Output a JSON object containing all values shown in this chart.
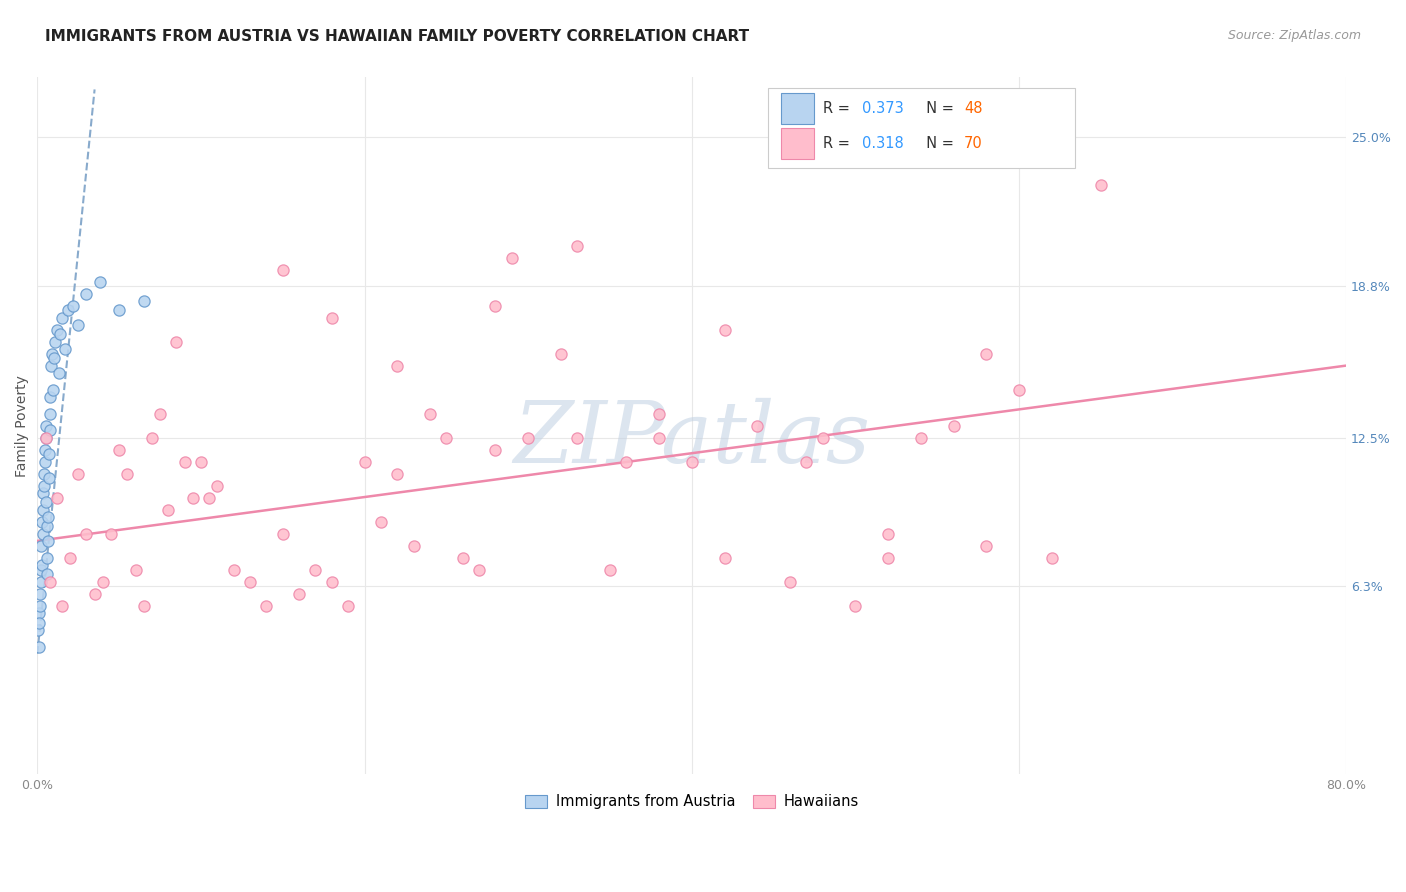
{
  "title": "IMMIGRANTS FROM AUSTRIA VS HAWAIIAN FAMILY POVERTY CORRELATION CHART",
  "source": "Source: ZipAtlas.com",
  "ylabel": "Family Poverty",
  "xlim": [
    0.0,
    80.0
  ],
  "ylim": [
    -1.5,
    27.5
  ],
  "y_ticks_right": [
    6.3,
    12.5,
    18.8,
    25.0
  ],
  "y_ticks_right_labels": [
    "6.3%",
    "12.5%",
    "18.8%",
    "25.0%"
  ],
  "x_ticks": [
    0,
    20,
    40,
    60,
    80
  ],
  "x_tick_labels": [
    "0.0%",
    "",
    "",
    "",
    "80.0%"
  ],
  "grid_color": "#e8e8e8",
  "background_color": "#ffffff",
  "watermark": "ZIPatlas",
  "watermark_color": "#c0d0e2",
  "austria_color_fill": "#b8d4f0",
  "austria_color_edge": "#6699cc",
  "austria_line_color": "#88aacc",
  "hawaii_color_fill": "#ffbdcc",
  "hawaii_color_edge": "#ee88aa",
  "hawaii_line_color": "#ee88aa",
  "series_label_austria": "Immigrants from Austria",
  "series_label_hawaii": "Hawaiians",
  "R_austria": "0.373",
  "N_austria": "48",
  "R_hawaii": "0.318",
  "N_hawaii": "70",
  "austria_x": [
    0.05,
    0.08,
    0.1,
    0.12,
    0.15,
    0.17,
    0.2,
    0.22,
    0.25,
    0.27,
    0.3,
    0.32,
    0.35,
    0.37,
    0.4,
    0.42,
    0.45,
    0.47,
    0.5,
    0.52,
    0.55,
    0.57,
    0.6,
    0.62,
    0.65,
    0.68,
    0.7,
    0.73,
    0.75,
    0.78,
    0.8,
    0.85,
    0.9,
    0.95,
    1.0,
    1.1,
    1.2,
    1.3,
    1.4,
    1.5,
    1.7,
    1.9,
    2.2,
    2.5,
    3.0,
    3.8,
    5.0,
    6.5
  ],
  "austria_y": [
    4.5,
    3.8,
    5.2,
    4.8,
    6.0,
    5.5,
    7.0,
    6.5,
    8.0,
    7.2,
    9.0,
    8.5,
    10.2,
    9.5,
    11.0,
    10.5,
    12.0,
    11.5,
    13.0,
    12.5,
    9.8,
    8.8,
    7.5,
    6.8,
    8.2,
    9.2,
    10.8,
    11.8,
    12.8,
    13.5,
    14.2,
    15.5,
    16.0,
    14.5,
    15.8,
    16.5,
    17.0,
    15.2,
    16.8,
    17.5,
    16.2,
    17.8,
    18.0,
    17.2,
    18.5,
    19.0,
    17.8,
    18.2
  ],
  "hawaii_x": [
    0.5,
    0.8,
    1.2,
    1.5,
    2.0,
    2.5,
    3.0,
    3.5,
    4.0,
    4.5,
    5.0,
    5.5,
    6.0,
    6.5,
    7.0,
    7.5,
    8.0,
    8.5,
    9.0,
    9.5,
    10.0,
    10.5,
    11.0,
    12.0,
    13.0,
    14.0,
    15.0,
    16.0,
    17.0,
    18.0,
    19.0,
    20.0,
    21.0,
    22.0,
    23.0,
    24.0,
    25.0,
    26.0,
    27.0,
    28.0,
    29.0,
    30.0,
    32.0,
    33.0,
    35.0,
    36.0,
    38.0,
    40.0,
    42.0,
    44.0,
    46.0,
    48.0,
    50.0,
    52.0,
    54.0,
    56.0,
    58.0,
    60.0,
    62.0,
    65.0,
    15.0,
    18.0,
    22.0,
    28.0,
    33.0,
    38.0,
    42.0,
    47.0,
    52.0,
    58.0
  ],
  "hawaii_y": [
    12.5,
    6.5,
    10.0,
    5.5,
    7.5,
    11.0,
    8.5,
    6.0,
    6.5,
    8.5,
    12.0,
    11.0,
    7.0,
    5.5,
    12.5,
    13.5,
    9.5,
    16.5,
    11.5,
    10.0,
    11.5,
    10.0,
    10.5,
    7.0,
    6.5,
    5.5,
    8.5,
    6.0,
    7.0,
    6.5,
    5.5,
    11.5,
    9.0,
    11.0,
    8.0,
    13.5,
    12.5,
    7.5,
    7.0,
    12.0,
    20.0,
    12.5,
    16.0,
    12.5,
    7.0,
    11.5,
    12.5,
    11.5,
    7.5,
    13.0,
    6.5,
    12.5,
    5.5,
    7.5,
    12.5,
    13.0,
    8.0,
    14.5,
    7.5,
    23.0,
    19.5,
    17.5,
    15.5,
    18.0,
    20.5,
    13.5,
    17.0,
    11.5,
    8.5,
    16.0
  ],
  "austria_trend_x0": 0.0,
  "austria_trend_y0": 3.5,
  "austria_trend_x1": 3.5,
  "austria_trend_y1": 27.0,
  "hawaii_trend_x0": 0.0,
  "hawaii_trend_y0": 8.2,
  "hawaii_trend_x1": 80.0,
  "hawaii_trend_y1": 15.5
}
